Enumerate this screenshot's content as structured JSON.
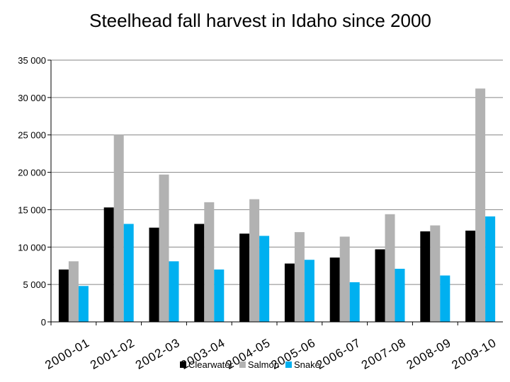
{
  "chart_data": {
    "type": "bar",
    "title": "Steelhead fall harvest in Idaho since 2000",
    "xlabel": "",
    "ylabel": "",
    "ylim": [
      0,
      35000
    ],
    "yticks": [
      0,
      5000,
      10000,
      15000,
      20000,
      25000,
      30000,
      35000
    ],
    "ytick_labels": [
      "0",
      "5 000",
      "10 000",
      "15 000",
      "20 000",
      "25 000",
      "30 000",
      "35 000"
    ],
    "grid": true,
    "legend_position": "bottom",
    "categories": [
      "2000-01",
      "2001-02",
      "2002-03",
      "2003-04",
      "2004-05",
      "2005-06",
      "2006-07",
      "2007-08",
      "2008-09",
      "2009-10"
    ],
    "series": [
      {
        "name": "Clearwater",
        "color": "#000000",
        "values": [
          7000,
          15300,
          12600,
          13100,
          11800,
          7800,
          8600,
          9700,
          12100,
          12200
        ]
      },
      {
        "name": "Salmon",
        "color": "#b2b2b2",
        "values": [
          8100,
          25000,
          19700,
          16000,
          16400,
          12000,
          11400,
          14400,
          12900,
          31200
        ]
      },
      {
        "name": "Snake",
        "color": "#00b0f0",
        "values": [
          4800,
          13100,
          8100,
          7000,
          11500,
          8300,
          5300,
          7100,
          6200,
          14100
        ]
      }
    ]
  }
}
